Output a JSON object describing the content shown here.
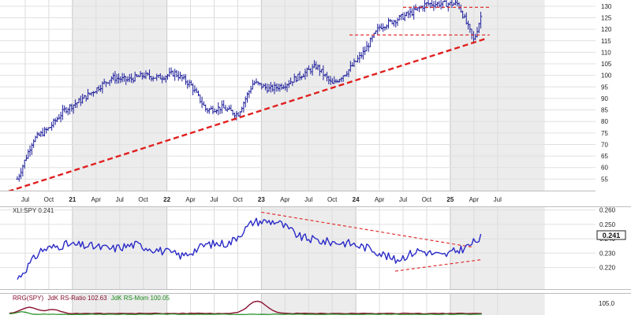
{
  "x_axis": {
    "labels": [
      "Jul",
      "Oct",
      "21",
      "Apr",
      "Jul",
      "Oct",
      "22",
      "Apr",
      "Jul",
      "Oct",
      "23",
      "Apr",
      "Jul",
      "Oct",
      "24",
      "Apr",
      "Jul",
      "Oct",
      "25",
      "Apr",
      "Jul"
    ],
    "year_labels": [
      "21",
      "22",
      "23",
      "24",
      "25"
    ]
  },
  "chart_data": [
    {
      "type": "line",
      "panel": "price",
      "style": "ohlc-bars",
      "title": "",
      "x": [
        "2020-06",
        "2020-08",
        "2020-10",
        "2020-12",
        "2021-02",
        "2021-04",
        "2021-06",
        "2021-08",
        "2021-10",
        "2021-12",
        "2022-02",
        "2022-04",
        "2022-06",
        "2022-08",
        "2022-10",
        "2022-12",
        "2023-02",
        "2023-04",
        "2023-06",
        "2023-08",
        "2023-10",
        "2023-12",
        "2024-02",
        "2024-04",
        "2024-06",
        "2024-08",
        "2024-10",
        "2024-12",
        "2025-02",
        "2025-04",
        "2025-05"
      ],
      "y": [
        55,
        72,
        77,
        85,
        89,
        94,
        99,
        98,
        100,
        99,
        101,
        96,
        85,
        86,
        83,
        97,
        94,
        96,
        100,
        104,
        96,
        102,
        110,
        121,
        124,
        127,
        131,
        131,
        131,
        115,
        127
      ],
      "ylim": [
        50,
        132
      ],
      "y_ticks": [
        55,
        60,
        65,
        70,
        75,
        80,
        85,
        90,
        95,
        100,
        105,
        110,
        115,
        120,
        125,
        130
      ],
      "annotations": {
        "trendline": "rising support (dashed red)",
        "horizontal_levels": [
          117.5,
          129.5
        ]
      },
      "grid": true
    },
    {
      "type": "line",
      "panel": "relative-strength",
      "title": "XLI:SPY 0.241",
      "series": [
        {
          "name": "XLI:SPY"
        }
      ],
      "last_value": "0.241",
      "x": [
        "2020-06",
        "2020-09",
        "2020-12",
        "2021-03",
        "2021-06",
        "2021-09",
        "2021-12",
        "2022-03",
        "2022-06",
        "2022-09",
        "2022-12",
        "2023-03",
        "2023-06",
        "2023-09",
        "2023-12",
        "2024-03",
        "2024-06",
        "2024-09",
        "2024-12",
        "2025-03",
        "2025-05"
      ],
      "y": [
        0.212,
        0.232,
        0.236,
        0.235,
        0.233,
        0.236,
        0.232,
        0.228,
        0.236,
        0.237,
        0.252,
        0.252,
        0.241,
        0.238,
        0.237,
        0.233,
        0.225,
        0.232,
        0.228,
        0.234,
        0.241
      ],
      "ylim": [
        0.205,
        0.262
      ],
      "y_ticks": [
        0.22,
        0.23,
        0.24,
        0.25,
        0.26
      ],
      "y_tick_labels": [
        "0.220",
        "0.230",
        "0.240",
        "0.250",
        "0.260"
      ],
      "annotations": {
        "pattern": "converging triangle (dashed red)"
      },
      "grid": true
    },
    {
      "type": "line",
      "panel": "rrg",
      "title": "RRG(SPY) JdK RS-Ratio 102.63 JdK RS-Mom 100.05",
      "series": [
        {
          "name": "JdK RS-Ratio",
          "label": "JdK RS-Ratio 102.63"
        },
        {
          "name": "JdK RS-Mom",
          "label": "JdK RS-Mom 100.05"
        }
      ],
      "y_tick_labels": [
        "105.0"
      ]
    }
  ],
  "texts": {
    "rs_label": "XLI:SPY 0.241",
    "rs_badge": "0.241",
    "rrg_prefix": "RRG(SPY)",
    "rrg_ratio": "JdK RS-Ratio 102.63",
    "rrg_mom": "JdK RS-Mom 100.05",
    "rrg_tick": "105.0"
  },
  "colors": {
    "price_bars": "#1f1f9c",
    "rs_line": "#2a2ac8",
    "trend_red": "#e02020",
    "rrg_ratio": "#8a1030",
    "rrg_mom": "#1a8a1a",
    "band": "#ececec"
  }
}
